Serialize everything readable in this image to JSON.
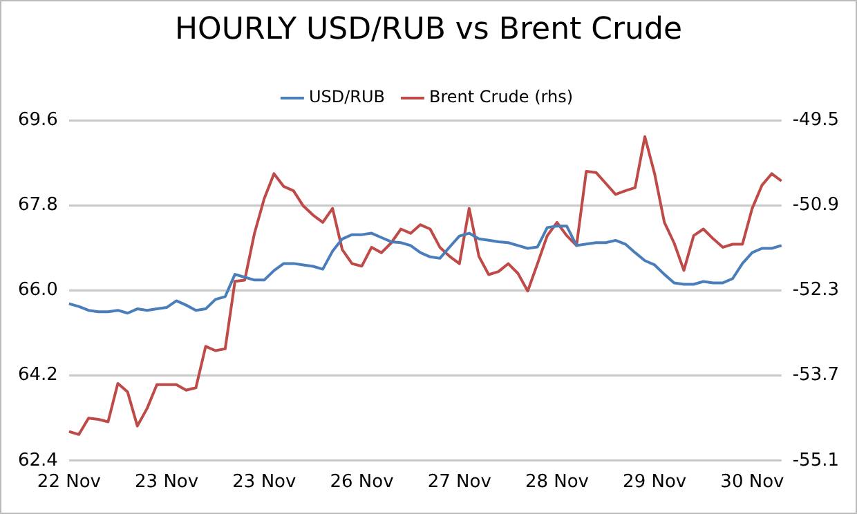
{
  "chart_data": {
    "type": "line",
    "title": "HOURLY USD/RUB vs Brent Crude",
    "categories": [
      "22 Nov",
      null,
      null,
      null,
      null,
      null,
      null,
      null,
      null,
      null,
      "23 Nov",
      null,
      null,
      null,
      null,
      null,
      null,
      null,
      null,
      null,
      "23 Nov",
      null,
      null,
      null,
      null,
      null,
      null,
      null,
      null,
      null,
      "26 Nov",
      null,
      null,
      null,
      null,
      null,
      null,
      null,
      null,
      null,
      "27 Nov",
      null,
      null,
      null,
      null,
      null,
      null,
      null,
      null,
      null,
      "28 Nov",
      null,
      null,
      null,
      null,
      null,
      null,
      null,
      null,
      null,
      "29 Nov",
      null,
      null,
      null,
      null,
      null,
      null,
      null,
      null,
      null,
      "30 Nov",
      null,
      null,
      null
    ],
    "series": [
      {
        "name": "USD/RUB",
        "color": "#4a7ebb",
        "values": [
          65.72,
          65.66,
          65.58,
          65.55,
          65.55,
          65.58,
          65.52,
          65.61,
          65.58,
          65.61,
          65.64,
          65.78,
          65.69,
          65.58,
          65.61,
          65.81,
          65.87,
          66.34,
          66.28,
          66.22,
          66.22,
          66.42,
          66.57,
          66.57,
          66.54,
          66.51,
          66.45,
          66.83,
          67.09,
          67.18,
          67.18,
          67.21,
          67.12,
          67.03,
          67.01,
          66.95,
          66.8,
          66.71,
          66.68,
          66.92,
          67.15,
          67.21,
          67.09,
          67.06,
          67.03,
          67.01,
          66.95,
          66.89,
          66.92,
          67.33,
          67.36,
          67.36,
          66.95,
          66.98,
          67.01,
          67.01,
          67.06,
          66.98,
          66.8,
          66.63,
          66.54,
          66.34,
          66.16,
          66.13,
          66.13,
          66.19,
          66.16,
          66.16,
          66.25,
          66.57,
          66.8,
          66.89,
          66.89,
          66.95
        ]
      },
      {
        "name": "Brent Crude (rhs)",
        "color": "#be4b48",
        "axis": "y2",
        "values": [
          -54.62,
          -54.67,
          -54.4,
          -54.42,
          -54.46,
          -53.83,
          -53.97,
          -54.53,
          -54.24,
          -53.85,
          -53.85,
          -53.85,
          -53.94,
          -53.9,
          -53.22,
          -53.29,
          -53.26,
          -52.15,
          -52.13,
          -51.36,
          -50.79,
          -50.38,
          -50.59,
          -50.66,
          -50.91,
          -51.06,
          -51.18,
          -50.95,
          -51.63,
          -51.86,
          -51.9,
          -51.59,
          -51.68,
          -51.52,
          -51.29,
          -51.36,
          -51.22,
          -51.29,
          -51.59,
          -51.74,
          -51.86,
          -50.95,
          -51.74,
          -52.04,
          -51.99,
          -51.86,
          -52.02,
          -52.31,
          -51.86,
          -51.4,
          -51.18,
          -51.4,
          -51.56,
          -50.34,
          -50.36,
          -50.54,
          -50.72,
          -50.66,
          -50.61,
          -49.77,
          -50.38,
          -51.18,
          -51.52,
          -51.97,
          -51.4,
          -51.29,
          -51.45,
          -51.59,
          -51.54,
          -51.54,
          -50.95,
          -50.57,
          -50.38,
          -50.5
        ]
      }
    ],
    "ylim": [
      62.4,
      69.6
    ],
    "yticks": [
      62.4,
      64.2,
      {
        "value": 66,
        "label": "66.0"
      },
      67.8,
      69.6
    ],
    "y2lim": [
      -55.1,
      -49.5
    ],
    "y2ticks": [
      -55.1,
      -53.7,
      -52.3,
      -50.9,
      -49.5
    ],
    "grid": "y",
    "legend": "top"
  }
}
